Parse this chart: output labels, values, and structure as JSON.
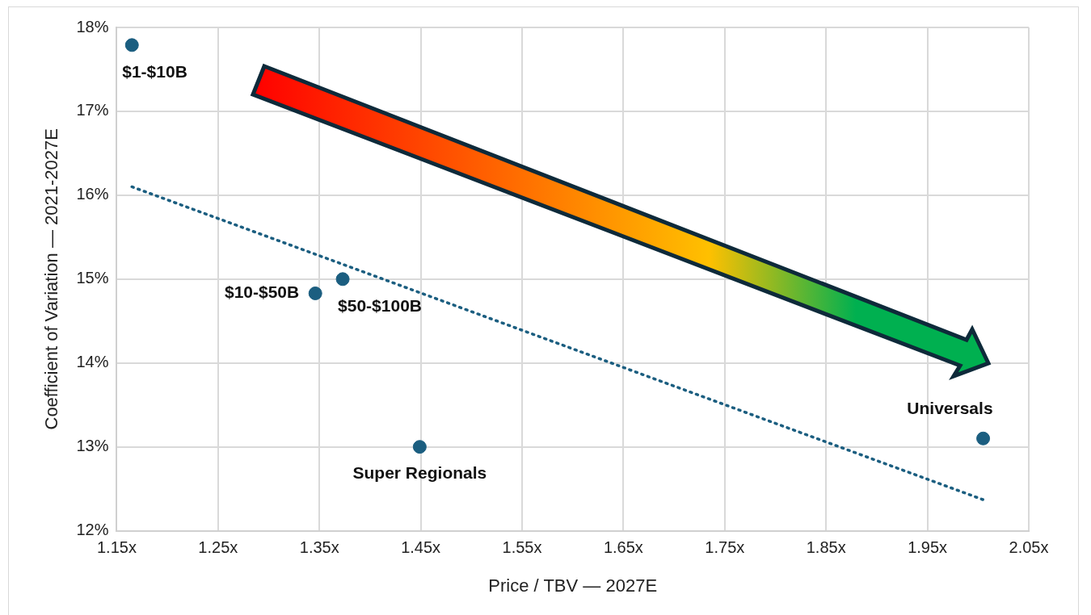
{
  "chart_data": {
    "type": "scatter",
    "xlabel": "Price / TBV — 2027E",
    "ylabel": "Coefficient of Variation — 2021-2027E",
    "xlim": [
      1.15,
      2.05
    ],
    "ylim": [
      12,
      18
    ],
    "xticks": [
      {
        "value": 1.15,
        "label": "1.15x"
      },
      {
        "value": 1.25,
        "label": "1.25x"
      },
      {
        "value": 1.35,
        "label": "1.35x"
      },
      {
        "value": 1.45,
        "label": "1.45x"
      },
      {
        "value": 1.55,
        "label": "1.55x"
      },
      {
        "value": 1.65,
        "label": "1.65x"
      },
      {
        "value": 1.75,
        "label": "1.75x"
      },
      {
        "value": 1.85,
        "label": "1.85x"
      },
      {
        "value": 1.95,
        "label": "1.95x"
      },
      {
        "value": 2.05,
        "label": "2.05x"
      }
    ],
    "yticks": [
      {
        "value": 12,
        "label": "12%"
      },
      {
        "value": 13,
        "label": "13%"
      },
      {
        "value": 14,
        "label": "14%"
      },
      {
        "value": 15,
        "label": "15%"
      },
      {
        "value": 16,
        "label": "16%"
      },
      {
        "value": 17,
        "label": "17%"
      },
      {
        "value": 18,
        "label": "18%"
      }
    ],
    "grid": true,
    "legend": false,
    "marker": "circle",
    "series": [
      {
        "name": "$1-$10B",
        "color": "#1b5e80",
        "x": [
          1.165
        ],
        "values": [
          17.79
        ]
      },
      {
        "name": "$10-$50B",
        "color": "#1b5e80",
        "x": [
          1.346
        ],
        "values": [
          14.83
        ]
      },
      {
        "name": "$50-$100B",
        "color": "#1b5e80",
        "x": [
          1.373
        ],
        "values": [
          15.0
        ]
      },
      {
        "name": "Super Regionals",
        "color": "#1b5e80",
        "x": [
          1.449
        ],
        "values": [
          13.0
        ]
      },
      {
        "name": "Universals",
        "color": "#1b5e80",
        "x": [
          2.005
        ],
        "values": [
          13.1
        ]
      },
      {
        "type": "line",
        "color": "#1b5e80",
        "x": [
          1.165,
          2.005
        ],
        "values": [
          16.1,
          12.37
        ],
        "line_style": "dotted",
        "marker": "none"
      }
    ]
  }
}
